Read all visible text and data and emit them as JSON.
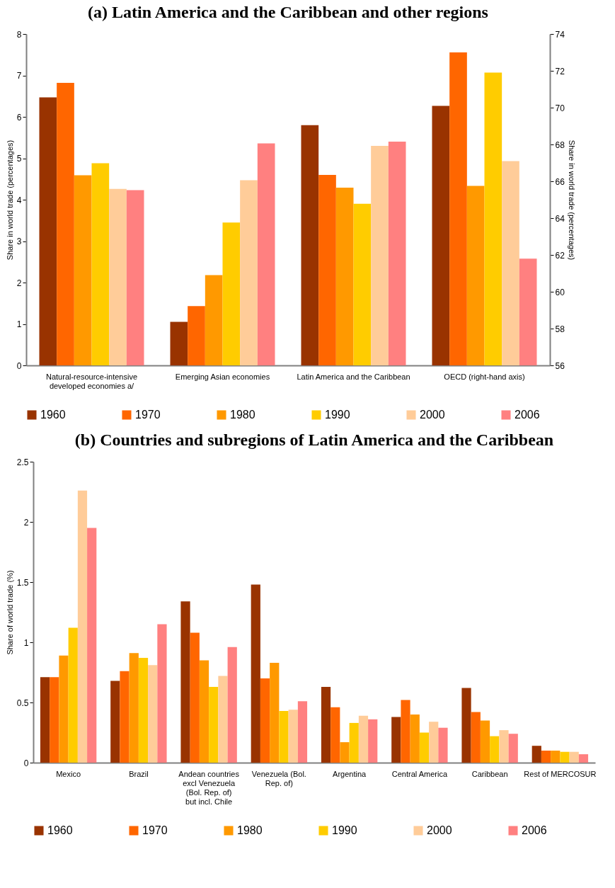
{
  "chart_data": [
    {
      "type": "bar",
      "title": "(a) Latin America and the Caribbean and other regions",
      "categories": [
        "Natural-resource-intensive developed economies a/",
        "Emerging Asian economies",
        "Latin America and the Caribbean",
        "OECD (right-hand axis)"
      ],
      "ylabel": "Share in world trade (percentages)",
      "y2label": "Share in world trade (percentages)",
      "ylim": [
        0,
        8
      ],
      "yticks": [
        0,
        1,
        2,
        3,
        4,
        5,
        6,
        7,
        8
      ],
      "y2lim": [
        56,
        74
      ],
      "y2ticks": [
        56,
        58,
        60,
        62,
        64,
        66,
        68,
        70,
        72,
        74
      ],
      "legend": "bottom",
      "grid": false,
      "series": [
        {
          "name": "1960",
          "color": "#993300",
          "values": [
            6.47,
            1.05,
            5.8,
            null
          ]
        },
        {
          "name": "1970",
          "color": "#ff6600",
          "values": [
            6.82,
            1.43,
            4.6,
            null
          ]
        },
        {
          "name": "1980",
          "color": "#ff9900",
          "values": [
            4.59,
            2.18,
            4.29,
            null
          ]
        },
        {
          "name": "1990",
          "color": "#ffcc00",
          "values": [
            4.88,
            3.45,
            3.9,
            null
          ]
        },
        {
          "name": "2000",
          "color": "#ffcc99",
          "values": [
            4.26,
            4.47,
            5.3,
            null
          ]
        },
        {
          "name": "2006",
          "color": "#ff8080",
          "values": [
            4.23,
            5.36,
            5.4,
            null
          ]
        },
        {
          "color": "#993300",
          "axis": "y2",
          "values": [
            null,
            null,
            null,
            70.1
          ]
        },
        {
          "color": "#ff6600",
          "axis": "y2",
          "values": [
            null,
            null,
            null,
            73.0
          ]
        },
        {
          "color": "#ff9900",
          "axis": "y2",
          "values": [
            null,
            null,
            null,
            65.75
          ]
        },
        {
          "color": "#ffcc00",
          "axis": "y2",
          "values": [
            null,
            null,
            null,
            71.9
          ]
        },
        {
          "color": "#ffcc99",
          "axis": "y2",
          "values": [
            null,
            null,
            null,
            67.1
          ]
        },
        {
          "color": "#ff8080",
          "axis": "y2",
          "values": [
            null,
            null,
            null,
            61.8
          ]
        }
      ]
    },
    {
      "type": "bar",
      "title": "(b) Countries and subregions of Latin America and the Caribbean",
      "categories": [
        "Mexico",
        "Brazil",
        "Andean countries excl Venezuela (Bol. Rep. of) but incl. Chile",
        "Venezuela (Bol. Rep. of)",
        "Argentina",
        "Central America",
        "Caribbean",
        "Rest of MERCOSUR"
      ],
      "ylabel": "Share of world trade (%)",
      "ylim": [
        0,
        2.5
      ],
      "yticks": [
        0,
        0.5,
        1,
        1.5,
        2,
        2.5
      ],
      "legend": "bottom",
      "grid": false,
      "series": [
        {
          "name": "1960",
          "color": "#993300",
          "values": [
            0.71,
            0.68,
            1.34,
            1.48,
            0.63,
            0.38,
            0.62,
            0.14
          ]
        },
        {
          "name": "1970",
          "color": "#ff6600",
          "values": [
            0.71,
            0.76,
            1.08,
            0.7,
            0.46,
            0.52,
            0.42,
            0.1
          ]
        },
        {
          "name": "1980",
          "color": "#ff9900",
          "values": [
            0.89,
            0.91,
            0.85,
            0.83,
            0.17,
            0.4,
            0.35,
            0.1
          ]
        },
        {
          "name": "1990",
          "color": "#ffcc00",
          "values": [
            1.12,
            0.87,
            0.63,
            0.43,
            0.33,
            0.25,
            0.22,
            0.09
          ]
        },
        {
          "name": "2000",
          "color": "#ffcc99",
          "values": [
            2.26,
            0.81,
            0.72,
            0.44,
            0.39,
            0.34,
            0.27,
            0.09
          ]
        },
        {
          "name": "2006",
          "color": "#ff8080",
          "values": [
            1.95,
            1.15,
            0.96,
            0.51,
            0.36,
            0.29,
            0.24,
            0.07
          ]
        }
      ]
    }
  ]
}
